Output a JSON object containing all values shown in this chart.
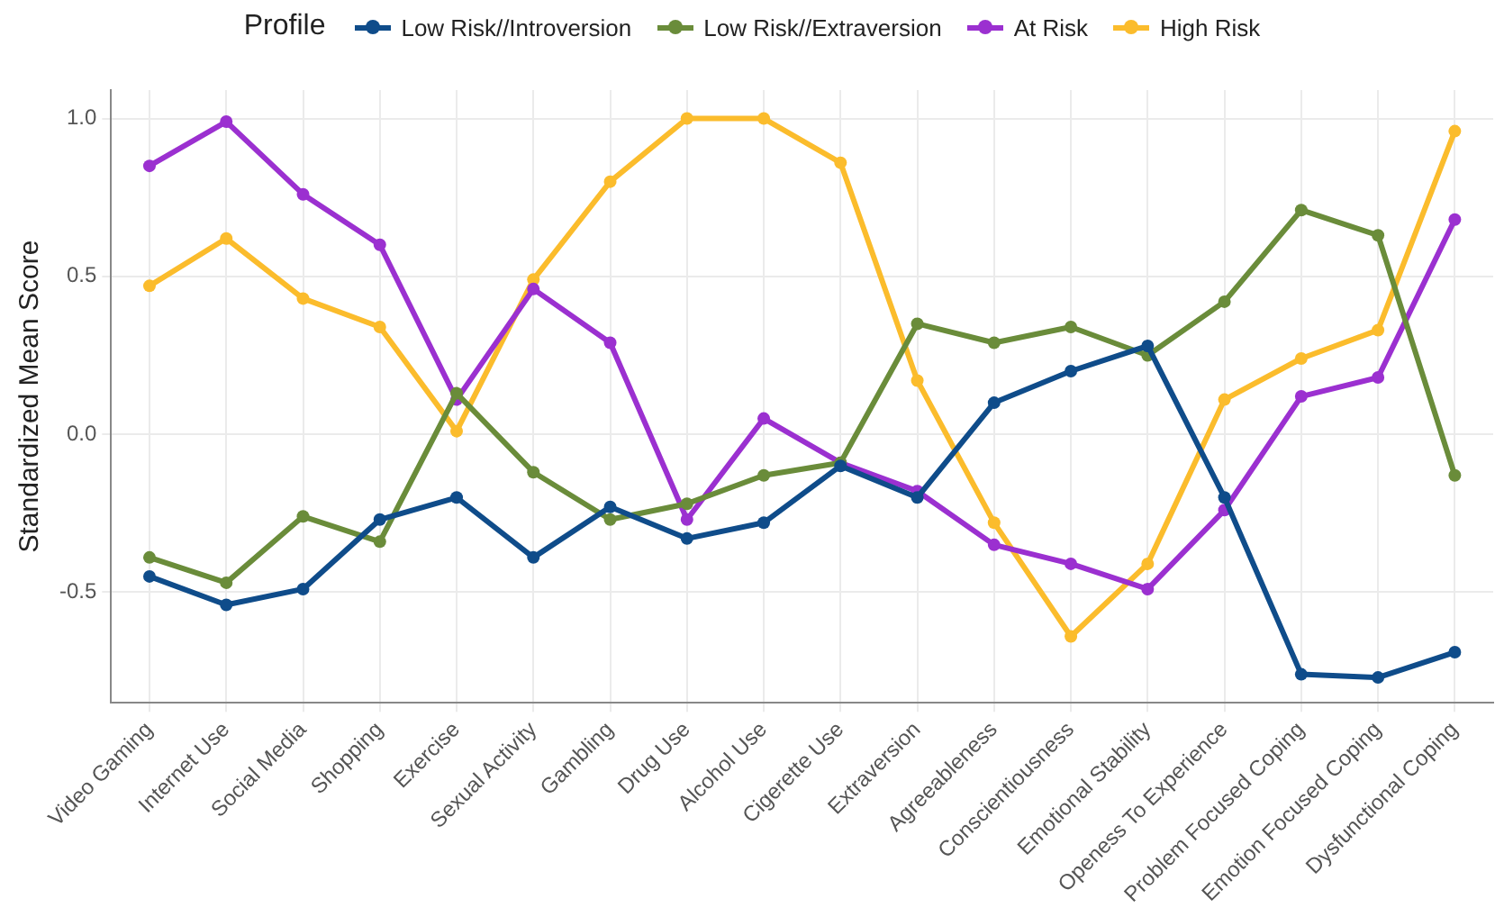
{
  "chart_data": {
    "type": "line",
    "ylabel": "Standardized Mean Score",
    "legend_title": "Profile",
    "legend": "top",
    "categories": [
      "Video Gaming",
      "Internet Use",
      "Social Media",
      "Shopping",
      "Exercise",
      "Sexual Activity",
      "Gambling",
      "Drug Use",
      "Alcohol Use",
      "Cigerette Use",
      "Extraversion",
      "Agreeableness",
      "Conscientiousness",
      "Emotional Stability",
      "Openess To Experience",
      "Problem Focused Coping",
      "Emotion Focused Coping",
      "Dysfunctional Coping"
    ],
    "series": [
      {
        "name": "Low Risk//Introversion",
        "color": "#0f4c8a",
        "values": [
          -0.45,
          -0.54,
          -0.49,
          -0.27,
          -0.2,
          -0.39,
          -0.23,
          -0.33,
          -0.28,
          -0.1,
          -0.2,
          0.1,
          0.2,
          0.28,
          -0.2,
          -0.76,
          -0.77,
          -0.69
        ]
      },
      {
        "name": "Low Risk//Extraversion",
        "color": "#6a8c3a",
        "values": [
          -0.39,
          -0.47,
          -0.26,
          -0.34,
          0.13,
          -0.12,
          -0.27,
          -0.22,
          -0.13,
          -0.09,
          0.35,
          0.29,
          0.34,
          0.25,
          0.42,
          0.71,
          0.63,
          -0.13
        ]
      },
      {
        "name": "At Risk",
        "color": "#9b30d0",
        "values": [
          0.85,
          0.99,
          0.76,
          0.6,
          0.11,
          0.46,
          0.29,
          -0.27,
          0.05,
          -0.09,
          -0.18,
          -0.35,
          -0.41,
          -0.49,
          -0.24,
          0.12,
          0.18,
          0.68
        ]
      },
      {
        "name": "High Risk",
        "color": "#fbbc2c",
        "values": [
          0.47,
          0.62,
          0.43,
          0.34,
          0.01,
          0.49,
          0.8,
          1.0,
          1.0,
          0.86,
          0.17,
          -0.28,
          -0.64,
          -0.41,
          0.11,
          0.24,
          0.33,
          0.96
        ]
      }
    ],
    "ylim": [
      -0.85,
      1.09
    ],
    "yticks": [
      {
        "value": -0.5,
        "label": "-0.5"
      },
      {
        "value": 0,
        "label": "0.0"
      },
      {
        "value": 0.5,
        "label": "0.5"
      },
      {
        "value": 1,
        "label": "1.0"
      }
    ],
    "grid": true,
    "marker": "circle",
    "line_style": "solid"
  }
}
